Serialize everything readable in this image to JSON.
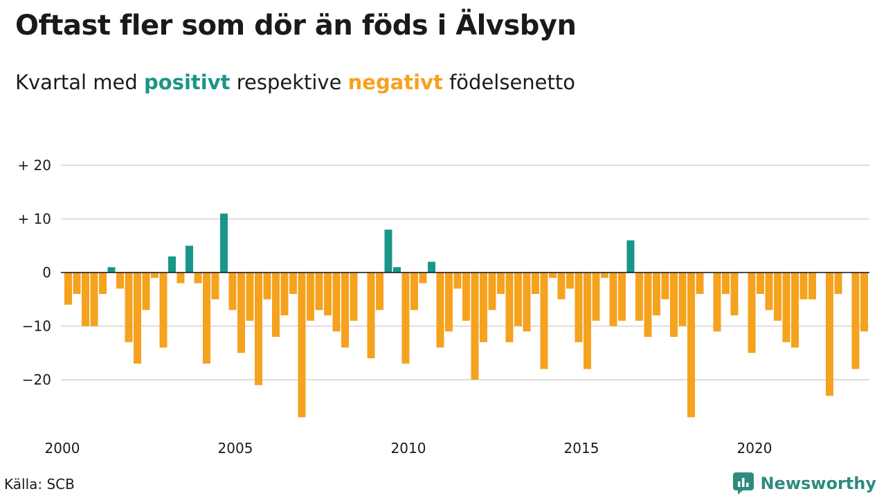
{
  "header": {
    "title": "Oftast fler som dör än föds i Älvsbyn",
    "subtitle_pre": "Kvartal med",
    "subtitle_pos": "positivt",
    "subtitle_mid": "respektive",
    "subtitle_neg": "negativt",
    "subtitle_post": "födelsenetto"
  },
  "footer": {
    "source": "Källa: SCB",
    "brand": "Newsworthy"
  },
  "colors": {
    "positive": "#1a9688",
    "negative": "#f5a21f",
    "grid": "#dcdcdc",
    "brand": "#2e8b7f"
  },
  "chart_data": {
    "type": "bar",
    "title": "Oftast fler som dör än föds i Älvsbyn",
    "subtitle": "Kvartal med positivt respektive negativt födelsenetto",
    "x_start_year": 2000,
    "periods_per_year": 4,
    "values": [
      -6,
      -4,
      -10,
      -10,
      -4,
      1,
      -3,
      -13,
      -17,
      -7,
      -1,
      -14,
      3,
      -2,
      5,
      -2,
      -17,
      -5,
      11,
      -7,
      -15,
      -9,
      -21,
      -5,
      -12,
      -8,
      -4,
      -27,
      -9,
      -7,
      -8,
      -11,
      -14,
      -9,
      0,
      -16,
      -7,
      8,
      1,
      -17,
      -7,
      -2,
      2,
      -14,
      -11,
      -3,
      -9,
      -20,
      -13,
      -7,
      -4,
      -13,
      -10,
      -11,
      -4,
      -18,
      -1,
      -5,
      -3,
      -13,
      -18,
      -9,
      -1,
      -10,
      -9,
      6,
      -9,
      -12,
      -8,
      -5,
      -12,
      -10,
      -27,
      -4,
      0,
      -11,
      -4,
      -8,
      0,
      -15,
      -4,
      -7,
      -9,
      -13,
      -14,
      -5,
      -5,
      0,
      -23,
      -4,
      0,
      -18,
      -11
    ],
    "xlim": [
      2000,
      2023.5
    ],
    "ylim": [
      -27,
      20
    ],
    "y_ticks": [
      20,
      10,
      0,
      -10,
      -20
    ],
    "y_tick_labels": [
      "+ 20",
      "+ 10",
      "0",
      "−10",
      "−20"
    ],
    "x_ticks": [
      2000,
      2005,
      2010,
      2015,
      2020
    ],
    "x_tick_labels": [
      "2000",
      "2005",
      "2010",
      "2015",
      "2020"
    ],
    "grid": true,
    "legend": "none"
  }
}
